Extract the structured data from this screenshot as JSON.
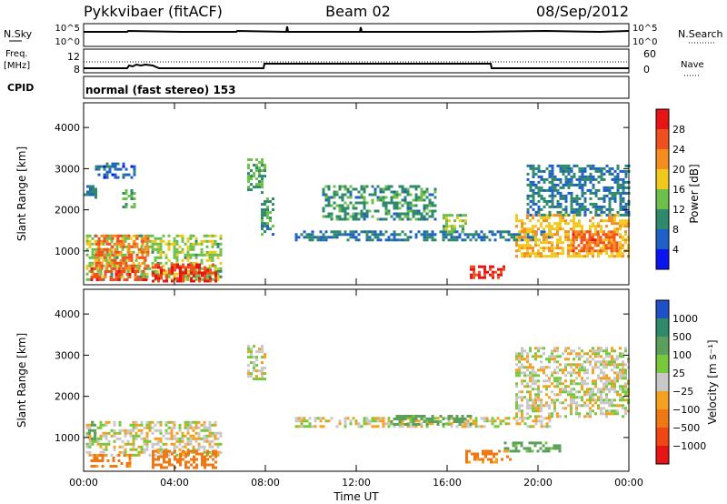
{
  "header": {
    "station": "Pykkvibaer (fitACF)",
    "beam": "Beam 02",
    "date": "08/Sep/2012"
  },
  "noise_panel": {
    "left_label": "N.Sky",
    "right_label": "N.Search",
    "left_ticks": [
      "10^5",
      "10^0"
    ],
    "right_ticks": [
      "10^5",
      "10^0"
    ]
  },
  "freq_panel": {
    "left_label_top": "Freq.",
    "left_label_bottom": "[MHz]",
    "left_ticks": [
      "12",
      "8"
    ],
    "right_label": "Nave",
    "right_ticks": [
      "60",
      "0"
    ]
  },
  "cpid_panel": {
    "label": "CPID",
    "mode": "normal (fast stereo) 153"
  },
  "range_axis": {
    "label": "Slant Range [km]",
    "ticks": [
      "1000",
      "2000",
      "3000",
      "4000"
    ]
  },
  "time_axis": {
    "label": "Time UT",
    "ticks": [
      "00:00",
      "04:00",
      "08:00",
      "12:00",
      "16:00",
      "20:00",
      "00:00"
    ]
  },
  "power_scale": {
    "label": "Power [dB]",
    "ticks": [
      "4",
      "8",
      "12",
      "16",
      "20",
      "24",
      "28"
    ],
    "colors": [
      "#0a14f0",
      "#1e5fc8",
      "#2e8a6a",
      "#6cc04a",
      "#f0c81e",
      "#f58c1e",
      "#f0501e",
      "#e61414"
    ]
  },
  "velocity_scale": {
    "label": "Velocity [m s⁻¹]",
    "ticks": [
      "1000",
      "500",
      "100",
      "25",
      "−25",
      "−100",
      "−500",
      "−1000"
    ],
    "colors": [
      "#1e50c8",
      "#2e8a6a",
      "#5aa05a",
      "#78c83c",
      "#c8c8c8",
      "#f5a01e",
      "#f07814",
      "#f04614",
      "#e61414"
    ]
  },
  "chart_data": {
    "type": "heatmap",
    "title": "Pykkvibaer (fitACF)  Beam 02  08/Sep/2012",
    "x": {
      "label": "Time UT",
      "unit": "hours",
      "range": [
        0,
        24
      ]
    },
    "y": {
      "label": "Slant Range [km]",
      "unit": "km",
      "range": [
        180,
        4600
      ]
    },
    "panels": [
      {
        "name": "Power",
        "unit": "dB",
        "scale_range": [
          0,
          30
        ],
        "regions": [
          {
            "t": [
              0.1,
              6.0
            ],
            "r": [
              300,
              1400
            ],
            "value": 14
          },
          {
            "t": [
              0.5,
              2.8
            ],
            "r": [
              600,
              1400
            ],
            "value": 22
          },
          {
            "t": [
              3.0,
              5.8
            ],
            "r": [
              300,
              700
            ],
            "value": 26
          },
          {
            "t": [
              0.3,
              2.8
            ],
            "r": [
              300,
              600
            ],
            "value": 25
          },
          {
            "t": [
              0.0,
              0.5
            ],
            "r": [
              2300,
              2600
            ],
            "value": 8
          },
          {
            "t": [
              0.5,
              2.2
            ],
            "r": [
              2800,
              3150
            ],
            "value": 6
          },
          {
            "t": [
              1.7,
              2.2
            ],
            "r": [
              2000,
              2500
            ],
            "value": 12
          },
          {
            "t": [
              7.2,
              8.0
            ],
            "r": [
              2400,
              3250
            ],
            "value": 12
          },
          {
            "t": [
              7.8,
              8.4
            ],
            "r": [
              1400,
              2300
            ],
            "value": 10
          },
          {
            "t": [
              9.3,
              20.5
            ],
            "r": [
              1300,
              1500
            ],
            "value": 8
          },
          {
            "t": [
              10.5,
              15.5
            ],
            "r": [
              1800,
              2600
            ],
            "value": 10
          },
          {
            "t": [
              15.8,
              16.8
            ],
            "r": [
              1500,
              1900
            ],
            "value": 14
          },
          {
            "t": [
              17.0,
              18.5
            ],
            "r": [
              350,
              650
            ],
            "value": 26
          },
          {
            "t": [
              19.0,
              24.0
            ],
            "r": [
              900,
              1900
            ],
            "value": 18
          },
          {
            "t": [
              21.5,
              23.5
            ],
            "r": [
              1000,
              1500
            ],
            "value": 24
          },
          {
            "t": [
              19.5,
              24.0
            ],
            "r": [
              1900,
              3100
            ],
            "value": 8
          }
        ]
      },
      {
        "name": "Velocity",
        "unit": "m/s",
        "scale_range": [
          -1000,
          1000
        ],
        "regions": [
          {
            "t": [
              0.1,
              6.0
            ],
            "r": [
              600,
              1400
            ],
            "value": 0
          },
          {
            "t": [
              3.0,
              5.8
            ],
            "r": [
              300,
              700
            ],
            "value": -300
          },
          {
            "t": [
              0.3,
              2.0
            ],
            "r": [
              300,
              600
            ],
            "value": -150
          },
          {
            "t": [
              0.2,
              0.5
            ],
            "r": [
              1000,
              1400
            ],
            "value": 200
          },
          {
            "t": [
              7.2,
              8.0
            ],
            "r": [
              2400,
              3250
            ],
            "value": 0
          },
          {
            "t": [
              9.3,
              20.5
            ],
            "r": [
              1300,
              1500
            ],
            "value": 0
          },
          {
            "t": [
              13.5,
              17.0
            ],
            "r": [
              1350,
              1550
            ],
            "value": 150
          },
          {
            "t": [
              16.8,
              18.8
            ],
            "r": [
              400,
              700
            ],
            "value": -150
          },
          {
            "t": [
              18.5,
              21.0
            ],
            "r": [
              700,
              900
            ],
            "value": 150
          },
          {
            "t": [
              19.0,
              24.0
            ],
            "r": [
              1500,
              3200
            ],
            "value": 0
          }
        ]
      }
    ]
  }
}
